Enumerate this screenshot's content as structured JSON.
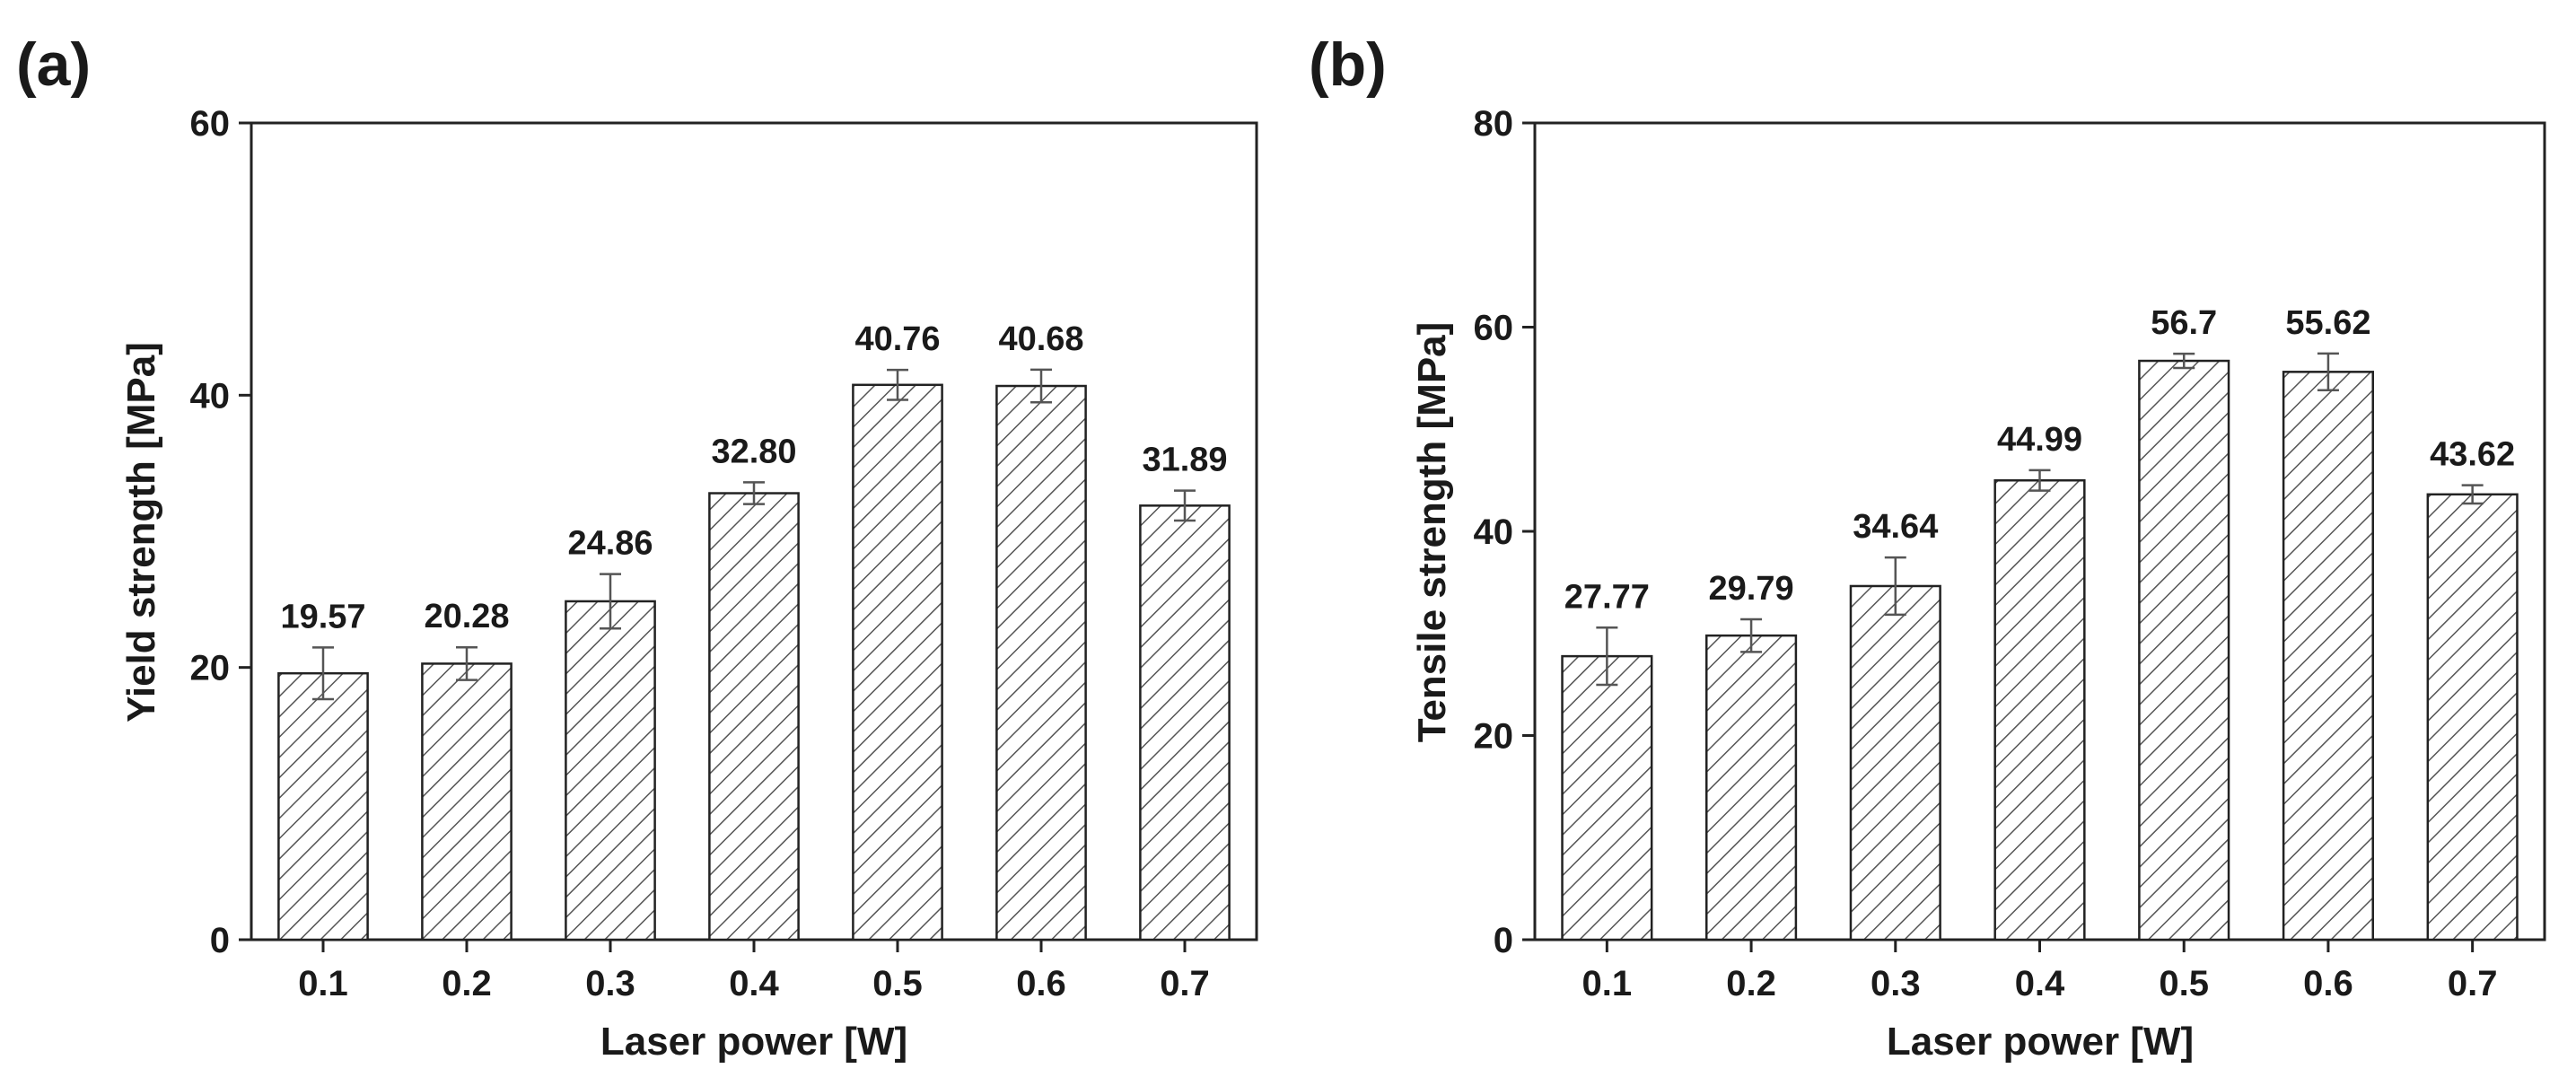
{
  "chart_data": [
    {
      "type": "bar",
      "panel_label": "(a)",
      "title": "",
      "xlabel": "Laser power [W]",
      "ylabel": "Yield strength [MPa]",
      "categories": [
        "0.1",
        "0.2",
        "0.3",
        "0.4",
        "0.5",
        "0.6",
        "0.7"
      ],
      "values": [
        19.57,
        20.28,
        24.86,
        32.8,
        40.76,
        40.68,
        31.89
      ],
      "value_labels": [
        "19.57",
        "20.28",
        "24.86",
        "32.80",
        "40.76",
        "40.68",
        "31.89"
      ],
      "errors": [
        1.9,
        1.2,
        2.0,
        0.8,
        1.1,
        1.2,
        1.1
      ],
      "ylim": [
        0,
        60
      ],
      "yticks": [
        0,
        20,
        40,
        60
      ],
      "grid": false,
      "fill": "hatched"
    },
    {
      "type": "bar",
      "panel_label": "(b)",
      "title": "",
      "xlabel": "Laser power [W]",
      "ylabel": "Tensile strength [MPa]",
      "categories": [
        "0.1",
        "0.2",
        "0.3",
        "0.4",
        "0.5",
        "0.6",
        "0.7"
      ],
      "values": [
        27.77,
        29.79,
        34.64,
        44.99,
        56.7,
        55.62,
        43.62
      ],
      "value_labels": [
        "27.77",
        "29.79",
        "34.64",
        "44.99",
        "56.7",
        "55.62",
        "43.62"
      ],
      "errors": [
        2.8,
        1.6,
        2.8,
        1.0,
        0.7,
        1.8,
        0.9
      ],
      "ylim": [
        0,
        80
      ],
      "yticks": [
        0,
        20,
        40,
        60,
        80
      ],
      "grid": false,
      "fill": "hatched"
    }
  ]
}
